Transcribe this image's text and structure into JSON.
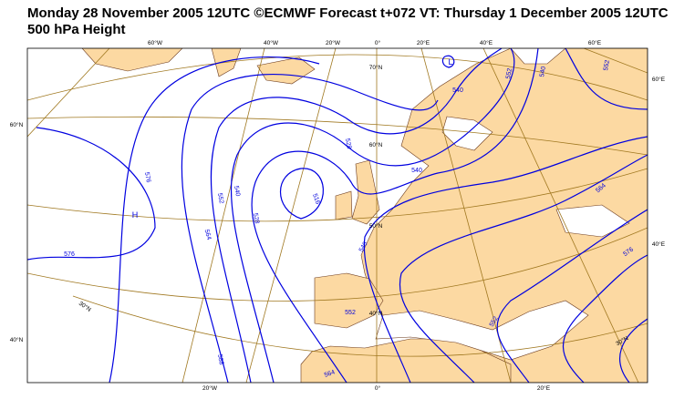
{
  "header": {
    "line1": "Monday 28 November 2005 12UTC ©ECMWF Forecast t+072 VT: Thursday 1 December 2005 12UTC",
    "line2": "500 hPa Height"
  },
  "graticule_labels": [
    "60°W",
    "40°W",
    "20°W",
    "0°",
    "20°E",
    "40°E",
    "60°E",
    "60°N",
    "40°N",
    "60°E",
    "40°E",
    "20°W",
    "0°",
    "20°E",
    "70°N",
    "60°N",
    "50°N",
    "40°N",
    "30°N",
    "30°N"
  ],
  "contour_labels": [
    "576",
    "576",
    "564",
    "552",
    "540",
    "528",
    "516",
    "528",
    "540",
    "540",
    "552",
    "540",
    "552",
    "564",
    "576",
    "588",
    "564",
    "552",
    "540",
    "552"
  ],
  "pressure_centres": [
    "H",
    "L"
  ]
}
